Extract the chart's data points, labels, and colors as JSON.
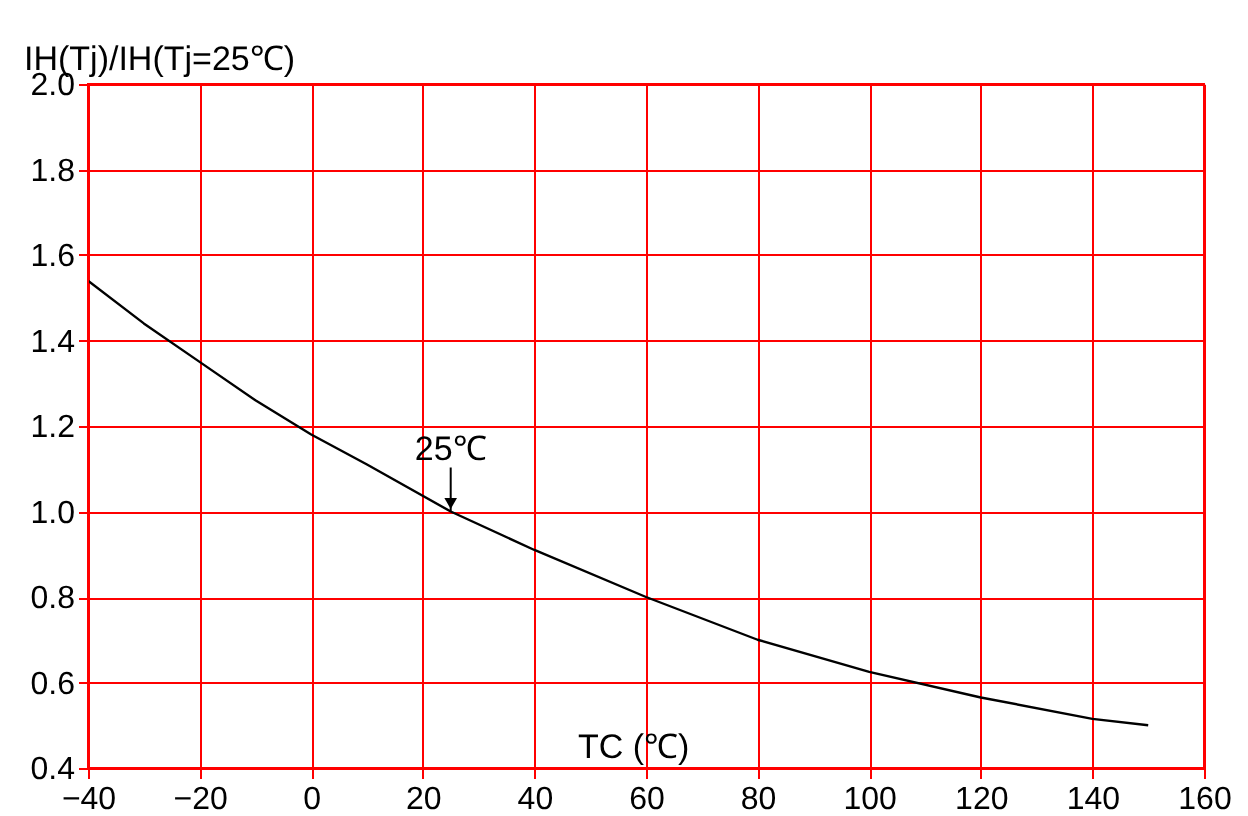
{
  "chart_data": {
    "type": "line",
    "ylabel": "IH(Tj)/IH(Tj=25℃)",
    "xlabel": "TC (℃)",
    "x": [
      -40,
      -30,
      -20,
      -10,
      0,
      10,
      25,
      40,
      60,
      80,
      100,
      120,
      140,
      150
    ],
    "series": [
      {
        "color": "#000000",
        "values": [
          1.54,
          1.44,
          1.35,
          1.26,
          1.18,
          1.11,
          1.0,
          0.91,
          0.8,
          0.7,
          0.625,
          0.565,
          0.515,
          0.5
        ]
      }
    ],
    "annotations": [
      {
        "text": "25℃",
        "x": 25,
        "y": 1.0
      }
    ],
    "xlim": [
      -40,
      160
    ],
    "xticks": [
      -40,
      -20,
      0,
      20,
      40,
      60,
      80,
      100,
      120,
      140,
      160
    ],
    "ylim": [
      0.4,
      2.0
    ],
    "yticks": [
      0.4,
      0.6,
      0.8,
      {
        "value": 1,
        "label": "1.0"
      },
      1.2,
      1.4,
      1.6,
      1.8,
      {
        "value": 2,
        "label": "2.0"
      }
    ],
    "grid": true,
    "marker": "none",
    "line_style": "solid"
  }
}
